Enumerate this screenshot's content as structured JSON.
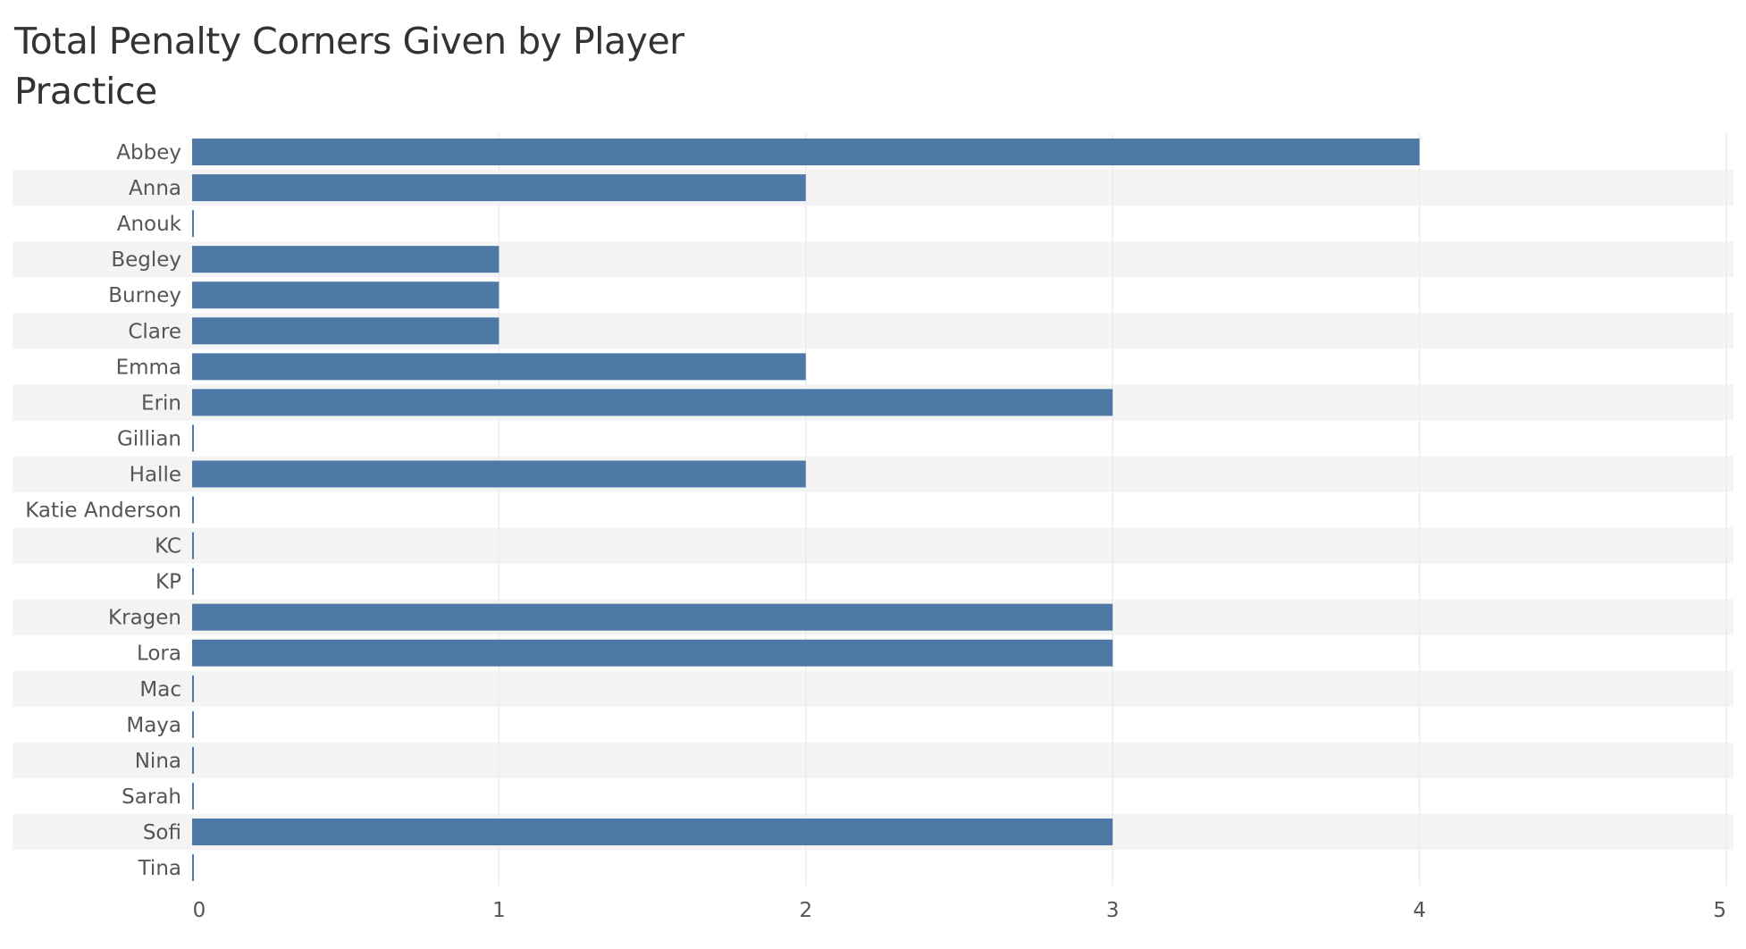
{
  "chart_data": {
    "type": "bar",
    "orientation": "horizontal",
    "title": "Total Penalty Corners Given by Player",
    "subtitle": "Practice",
    "categories": [
      "Abbey",
      "Anna",
      "Anouk",
      "Begley",
      "Burney",
      "Clare",
      "Emma",
      "Erin",
      "Gillian",
      "Halle",
      "Katie Anderson",
      "KC",
      "KP",
      "Kragen",
      "Lora",
      "Mac",
      "Maya",
      "Nina",
      "Sarah",
      "Sofi",
      "Tina"
    ],
    "values": [
      4,
      2,
      0,
      1,
      1,
      1,
      2,
      3,
      0,
      2,
      0,
      0,
      0,
      3,
      3,
      0,
      0,
      0,
      0,
      3,
      0
    ],
    "xlim": [
      0,
      5
    ],
    "xticks": [
      "0",
      "1",
      "2",
      "3",
      "4",
      "5"
    ],
    "xlabel": "",
    "ylabel": "",
    "grid": true,
    "colors": {
      "bar": "#4e79a7",
      "band": "#f4f4f4",
      "grid": "#ececec",
      "text": "#555555"
    }
  }
}
